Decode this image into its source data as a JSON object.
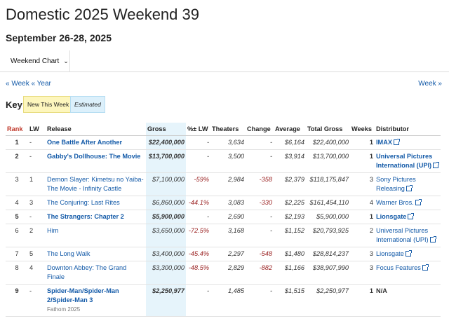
{
  "page": {
    "title": "Domestic 2025 Weekend 39",
    "subtitle": "September 26-28, 2025"
  },
  "tabs": {
    "weekend_chart": "Weekend Chart"
  },
  "nav": {
    "prev_week": "« Week",
    "prev_year": "« Year",
    "next_week": "Week »"
  },
  "key": {
    "label": "Key:",
    "new_this_week": "New This Week",
    "estimated": "Estimated"
  },
  "columns": {
    "rank": "Rank",
    "lw": "LW",
    "release": "Release",
    "gross": "Gross",
    "pct_lw": "%± LW",
    "theaters": "Theaters",
    "change": "Change",
    "average": "Average",
    "total_gross": "Total Gross",
    "weeks": "Weeks",
    "distributor": "Distributor"
  },
  "rows": [
    {
      "rank": "1",
      "lw": "-",
      "release": "One Battle After Another",
      "gross": "$22,400,000",
      "pct_lw": "-",
      "theaters": "3,634",
      "change": "-",
      "average": "$6,164",
      "total_gross": "$22,400,000",
      "weeks": "1",
      "distributor": "IMAX"
    },
    {
      "rank": "2",
      "lw": "-",
      "release": "Gabby's Dollhouse: The Movie",
      "gross": "$13,700,000",
      "pct_lw": "-",
      "theaters": "3,500",
      "change": "-",
      "average": "$3,914",
      "total_gross": "$13,700,000",
      "weeks": "1",
      "distributor": "Universal Pictures International (UPI)"
    },
    {
      "rank": "3",
      "lw": "1",
      "release": "Demon Slayer: Kimetsu no Yaiba- The Movie - Infinity Castle",
      "gross": "$7,100,000",
      "pct_lw": "-59%",
      "theaters": "2,984",
      "change": "-358",
      "average": "$2,379",
      "total_gross": "$118,175,847",
      "weeks": "3",
      "distributor": "Sony Pictures Releasing"
    },
    {
      "rank": "4",
      "lw": "3",
      "release": "The Conjuring: Last Rites",
      "gross": "$6,860,000",
      "pct_lw": "-44.1%",
      "theaters": "3,083",
      "change": "-330",
      "average": "$2,225",
      "total_gross": "$161,454,110",
      "weeks": "4",
      "distributor": "Warner Bros."
    },
    {
      "rank": "5",
      "lw": "-",
      "release": "The Strangers: Chapter 2",
      "gross": "$5,900,000",
      "pct_lw": "-",
      "theaters": "2,690",
      "change": "-",
      "average": "$2,193",
      "total_gross": "$5,900,000",
      "weeks": "1",
      "distributor": "Lionsgate"
    },
    {
      "rank": "6",
      "lw": "2",
      "release": "Him",
      "gross": "$3,650,000",
      "pct_lw": "-72.5%",
      "theaters": "3,168",
      "change": "-",
      "average": "$1,152",
      "total_gross": "$20,793,925",
      "weeks": "2",
      "distributor": "Universal Pictures International (UPI)"
    },
    {
      "rank": "7",
      "lw": "5",
      "release": "The Long Walk",
      "gross": "$3,400,000",
      "pct_lw": "-45.4%",
      "theaters": "2,297",
      "change": "-548",
      "average": "$1,480",
      "total_gross": "$28,814,237",
      "weeks": "3",
      "distributor": "Lionsgate"
    },
    {
      "rank": "8",
      "lw": "4",
      "release": "Downton Abbey: The Grand Finale",
      "gross": "$3,300,000",
      "pct_lw": "-48.5%",
      "theaters": "2,829",
      "change": "-882",
      "average": "$1,166",
      "total_gross": "$38,907,990",
      "weeks": "3",
      "distributor": "Focus Features"
    },
    {
      "rank": "9",
      "lw": "-",
      "release": "Spider-Man/Spider-Man 2/Spider-Man 3",
      "note": "Fathom 2025",
      "gross": "$2,250,977",
      "pct_lw": "-",
      "theaters": "1,485",
      "change": "-",
      "average": "$1,515",
      "total_gross": "$2,250,977",
      "weeks": "1",
      "distributor": "N/A"
    }
  ]
}
